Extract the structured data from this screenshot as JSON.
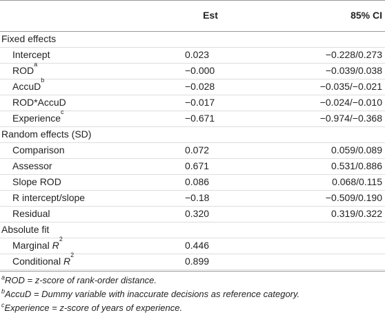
{
  "header": {
    "est": "Est",
    "ci": "85% CI"
  },
  "sections": [
    {
      "title": "Fixed effects",
      "rows": [
        {
          "label": "Intercept",
          "est": "0.023",
          "ci": "−0.228/0.273"
        },
        {
          "label": "ROD",
          "sup": "a",
          "est": "−0.000",
          "ci": "−0.039/0.038"
        },
        {
          "label": "AccuD",
          "sup": "b",
          "est": "−0.028",
          "ci": "−0.035/−0.021"
        },
        {
          "label": "ROD*AccuD",
          "est": "−0.017",
          "ci": "−0.024/−0.010"
        },
        {
          "label": "Experience",
          "sup": "c",
          "est": "−0.671",
          "ci": "−0.974/−0.368"
        }
      ]
    },
    {
      "title": "Random effects (SD)",
      "rows": [
        {
          "label": "Comparison",
          "est": "0.072",
          "ci": "0.059/0.089"
        },
        {
          "label": "Assessor",
          "est": "0.671",
          "ci": "0.531/0.886"
        },
        {
          "label": "Slope ROD",
          "est": "0.086",
          "ci": "0.068/0.115"
        },
        {
          "label": "R intercept/slope",
          "est": "−0.18",
          "ci": "−0.509/0.190"
        },
        {
          "label": "Residual",
          "est": "0.320",
          "ci": "0.319/0.322"
        }
      ]
    },
    {
      "title": "Absolute fit",
      "rows": [
        {
          "label": "Marginal",
          "italic": "R",
          "sup": "2",
          "est": "0.446"
        },
        {
          "label": "Conditional",
          "italic": "R",
          "sup": "2",
          "est": "0.899"
        }
      ]
    }
  ],
  "footnotes": [
    {
      "sup": "a",
      "text": "ROD = z-score of rank-order distance."
    },
    {
      "sup": "b",
      "text": "AccuD = Dummy variable with inaccurate decisions as reference category."
    },
    {
      "sup": "c",
      "text": "Experience = z-score of years of experience."
    }
  ]
}
